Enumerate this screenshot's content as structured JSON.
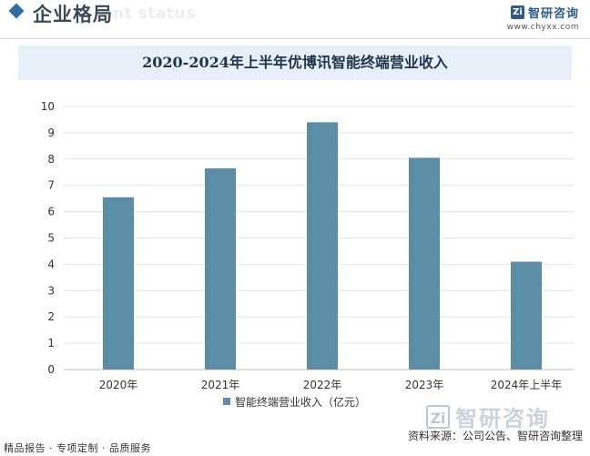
{
  "header": {
    "title": "企业格局",
    "subtitle": "ent status"
  },
  "logo": {
    "icon": "zhiyan-logo-icon",
    "name": "智研咨询",
    "url": "www.chyxx.com"
  },
  "footer": {
    "left": "精品报告 · 专项定制 · 品质服务",
    "source": "资料来源：公司公告、智研咨询整理",
    "brand_name": "智研咨询"
  },
  "colors": {
    "bar": "#5b8ea6",
    "title_band": "#e7f0f8",
    "accent": "#2e6ea6"
  },
  "chart_data": {
    "type": "bar",
    "title": "2020-2024年上半年优博讯智能终端营业收入",
    "categories": [
      "2020年",
      "2021年",
      "2022年",
      "2023年",
      "2024年上半年"
    ],
    "series": [
      {
        "name": "智能终端营业收入（亿元）",
        "values": [
          6.55,
          7.65,
          9.4,
          8.05,
          4.1
        ]
      }
    ],
    "xlabel": "",
    "ylabel": "",
    "ylim": [
      0,
      10
    ],
    "yticks": [
      0,
      1,
      2,
      3,
      4,
      5,
      6,
      7,
      8,
      9,
      10
    ],
    "grid": true,
    "legend": "bottom"
  }
}
